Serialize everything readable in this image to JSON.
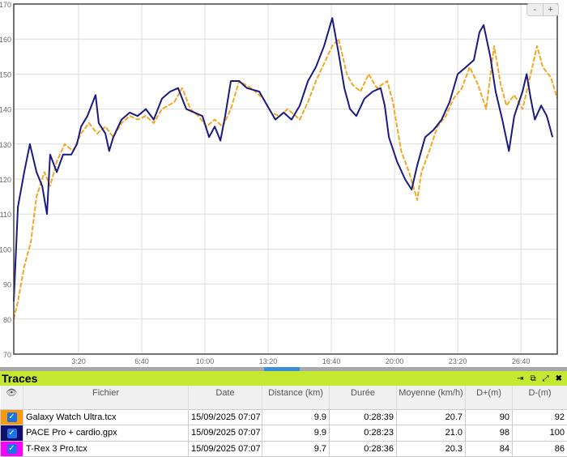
{
  "chart_data": {
    "type": "line",
    "xlabel": "",
    "ylabel": "",
    "xlim": [
      -5,
      1715
    ],
    "ylim": [
      70,
      170
    ],
    "yticks": [
      70,
      80,
      90,
      100,
      110,
      120,
      130,
      140,
      150,
      160,
      170
    ],
    "xticks": [
      {
        "value": 200,
        "label": "3:20"
      },
      {
        "value": 400,
        "label": "6:40"
      },
      {
        "value": 600,
        "label": "10:00"
      },
      {
        "value": 800,
        "label": "13:20"
      },
      {
        "value": 1000,
        "label": "16:40"
      },
      {
        "value": 1200,
        "label": "20:00"
      },
      {
        "value": 1400,
        "label": "23:20"
      },
      {
        "value": 1600,
        "label": "26:40"
      }
    ],
    "grid": true,
    "series": [
      {
        "color": "#f5a623",
        "style": "dashed",
        "x": [
          -5,
          8,
          28,
          49,
          67,
          92,
          110,
          131,
          156,
          182,
          208,
          233,
          259,
          285,
          310,
          336,
          362,
          387,
          413,
          438,
          464,
          503,
          528,
          554,
          579,
          605,
          631,
          656,
          682,
          708,
          746,
          785,
          810,
          836,
          862,
          900,
          926,
          951,
          977,
          1003,
          1023,
          1049,
          1067,
          1092,
          1118,
          1144,
          1177,
          1195,
          1221,
          1246,
          1272,
          1285,
          1310,
          1336,
          1362,
          1387,
          1413,
          1438,
          1464,
          1490,
          1515,
          1536,
          1554,
          1579,
          1605,
          1631,
          1651,
          1669,
          1695,
          1715
        ],
        "y": [
          80,
          85,
          95,
          102,
          115,
          122,
          118,
          125,
          130,
          128,
          133,
          136,
          133,
          135,
          132,
          136,
          138,
          137,
          138,
          136,
          140,
          142,
          146,
          140,
          138,
          135,
          137,
          135,
          140,
          148,
          146,
          143,
          139,
          138,
          140,
          137,
          142,
          148,
          153,
          158,
          160,
          150,
          147,
          145,
          150,
          146,
          148,
          142,
          128,
          122,
          114,
          122,
          128,
          135,
          138,
          143,
          146,
          152,
          147,
          140,
          158,
          147,
          141,
          144,
          140,
          150,
          158,
          152,
          149,
          143
        ]
      },
      {
        "color": "#1a1a80",
        "style": "solid",
        "x": [
          -5,
          8,
          28,
          46,
          67,
          85,
          100,
          110,
          131,
          151,
          177,
          195,
          208,
          228,
          254,
          264,
          285,
          297,
          310,
          336,
          362,
          387,
          413,
          438,
          464,
          490,
          515,
          541,
          567,
          592,
          613,
          631,
          649,
          664,
          682,
          708,
          733,
          772,
          797,
          823,
          849,
          874,
          900,
          926,
          951,
          977,
          1003,
          1023,
          1041,
          1059,
          1079,
          1105,
          1131,
          1156,
          1169,
          1182,
          1208,
          1233,
          1254,
          1272,
          1297,
          1323,
          1349,
          1374,
          1400,
          1426,
          1451,
          1469,
          1482,
          1503,
          1520,
          1541,
          1562,
          1579,
          1605,
          1618,
          1631,
          1644,
          1664,
          1682,
          1700
        ],
        "y": [
          85,
          112,
          122,
          130,
          122,
          118,
          110,
          127,
          122,
          127,
          127,
          130,
          135,
          138,
          144,
          136,
          133,
          128,
          132,
          137,
          139,
          138,
          140,
          137,
          143,
          145,
          146,
          140,
          139,
          138,
          132,
          135,
          131,
          138,
          148,
          148,
          146,
          145,
          141,
          137,
          139,
          137,
          141,
          148,
          152,
          158,
          166,
          156,
          146,
          140,
          138,
          143,
          145,
          146,
          141,
          132,
          125,
          120,
          117,
          124,
          132,
          134,
          137,
          142,
          150,
          152,
          154,
          162,
          164,
          155,
          145,
          137,
          128,
          138,
          145,
          150,
          143,
          137,
          141,
          138,
          132
        ]
      }
    ]
  },
  "traces": {
    "title": "Traces",
    "columns": [
      "Fichier",
      "Date",
      "Distance (km)",
      "Durée",
      "Moyenne (km/h)",
      "D+(m)",
      "D-(m)"
    ],
    "rows": [
      {
        "color": "#f59b12",
        "file": "Galaxy Watch Ultra.tcx",
        "date": "15/09/2025 07:07",
        "distance": "9.9",
        "duree": "0:28:39",
        "moyenne": "20.7",
        "dplus": "90",
        "dminus": "92"
      },
      {
        "color": "#10106b",
        "file": "PACE Pro + cardio.gpx",
        "date": "15/09/2025 07:07",
        "distance": "9.9",
        "duree": "0:28:23",
        "moyenne": "21.0",
        "dplus": "98",
        "dminus": "100"
      },
      {
        "color": "#ff00ff",
        "file": "T-Rex 3 Pro.tcx",
        "date": "15/09/2025 07:07",
        "distance": "9.7",
        "duree": "0:28:36",
        "moyenne": "20.3",
        "dplus": "84",
        "dminus": "86"
      }
    ]
  },
  "zoom": {
    "minus": "-",
    "plus": "+"
  }
}
